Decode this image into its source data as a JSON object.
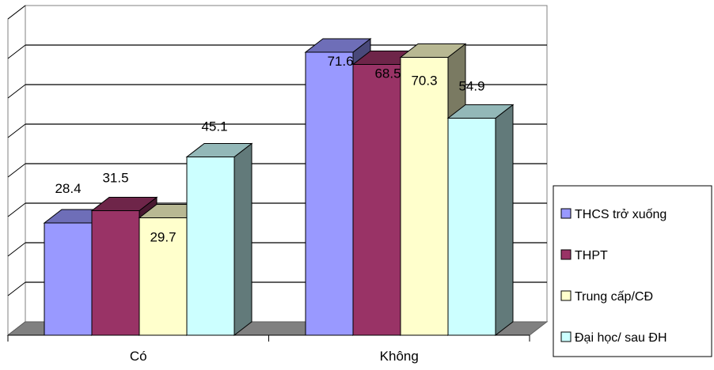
{
  "chart_data": {
    "type": "bar",
    "categories": [
      "Có",
      "Không"
    ],
    "series": [
      {
        "name": "THCS trở xuống",
        "values": [
          28.4,
          71.6
        ],
        "color": "#9999ff"
      },
      {
        "name": "THPT",
        "values": [
          31.5,
          68.5
        ],
        "color": "#993366"
      },
      {
        "name": "Trung cấp/CĐ",
        "values": [
          29.7,
          70.3
        ],
        "color": "#ffffcc"
      },
      {
        "name": "Đại học/ sau ĐH",
        "values": [
          45.1,
          54.9
        ],
        "color": "#ccffff"
      }
    ],
    "ylim": [
      0,
      80
    ],
    "grid": true,
    "three_d": true,
    "legend_position": "right"
  }
}
